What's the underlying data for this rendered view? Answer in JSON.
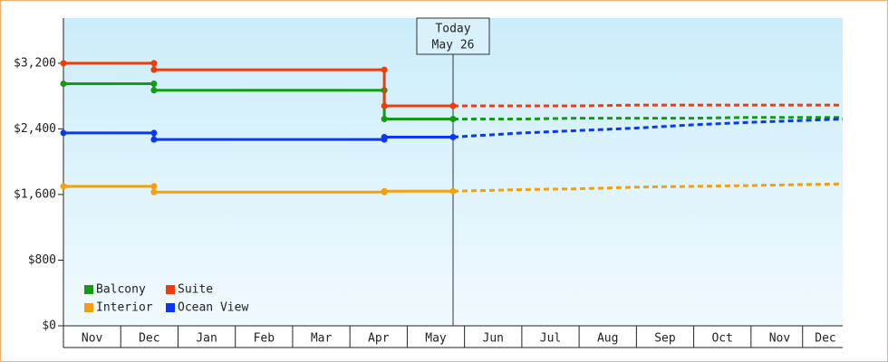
{
  "chart_data": {
    "type": "line",
    "xlim": [
      0,
      13.6
    ],
    "xticks": [
      {
        "value": 0.5,
        "label": "Nov"
      },
      {
        "value": 1.5,
        "label": "Dec"
      },
      {
        "value": 2.5,
        "label": "Jan"
      },
      {
        "value": 3.5,
        "label": "Feb"
      },
      {
        "value": 4.5,
        "label": "Mar"
      },
      {
        "value": 5.5,
        "label": "Apr"
      },
      {
        "value": 6.5,
        "label": "May"
      },
      {
        "value": 7.5,
        "label": "Jun"
      },
      {
        "value": 8.5,
        "label": "Jul"
      },
      {
        "value": 9.5,
        "label": "Aug"
      },
      {
        "value": 10.5,
        "label": "Sep"
      },
      {
        "value": 11.5,
        "label": "Oct"
      },
      {
        "value": 12.5,
        "label": "Nov"
      },
      {
        "value": 13.3,
        "label": "Dec"
      }
    ],
    "ylim": [
      0,
      3750
    ],
    "yticks": [
      {
        "value": 0,
        "label": "$0"
      },
      {
        "value": 800,
        "label": "$800"
      },
      {
        "value": 1600,
        "label": "$1,600"
      },
      {
        "value": 2400,
        "label": "$2,400"
      },
      {
        "value": 3200,
        "label": "$3,200"
      }
    ],
    "annotation": {
      "lines": [
        "Today",
        "May 26"
      ],
      "x": 6.8
    },
    "legend": "bottom-left",
    "series": [
      {
        "name": "Balcony",
        "color": "#149a14",
        "x": [
          0,
          1.58,
          1.58,
          5.6,
          5.6,
          6.8
        ],
        "values": [
          2950,
          2950,
          2870,
          2870,
          2520,
          2520
        ],
        "forecast_x": [
          6.8,
          8,
          9,
          10,
          11,
          12,
          13.6
        ],
        "forecast_values": [
          2520,
          2520,
          2530,
          2530,
          2530,
          2540,
          2540
        ]
      },
      {
        "name": "Suite",
        "color": "#f03c0a",
        "x": [
          0,
          1.58,
          1.58,
          5.6,
          5.6,
          6.8
        ],
        "values": [
          3200,
          3200,
          3120,
          3120,
          2680,
          2680
        ],
        "forecast_x": [
          6.8,
          8,
          9,
          10,
          11,
          12,
          13.6
        ],
        "forecast_values": [
          2680,
          2680,
          2680,
          2690,
          2690,
          2690,
          2690
        ]
      },
      {
        "name": "Interior",
        "color": "#f5a00a",
        "x": [
          0,
          1.58,
          1.58,
          5.6,
          5.6,
          6.8
        ],
        "values": [
          1700,
          1700,
          1630,
          1630,
          1640,
          1640
        ],
        "forecast_x": [
          6.8,
          8,
          9,
          10,
          11,
          12,
          13.6
        ],
        "forecast_values": [
          1640,
          1660,
          1670,
          1690,
          1700,
          1710,
          1730
        ]
      },
      {
        "name": "Ocean View",
        "color": "#0a37f0",
        "x": [
          0,
          1.58,
          1.58,
          5.6,
          5.6,
          6.8
        ],
        "values": [
          2350,
          2350,
          2270,
          2270,
          2300,
          2300
        ],
        "forecast_x": [
          6.8,
          8,
          9,
          10,
          11,
          12,
          13.6
        ],
        "forecast_values": [
          2300,
          2350,
          2380,
          2410,
          2450,
          2480,
          2520
        ]
      }
    ]
  }
}
